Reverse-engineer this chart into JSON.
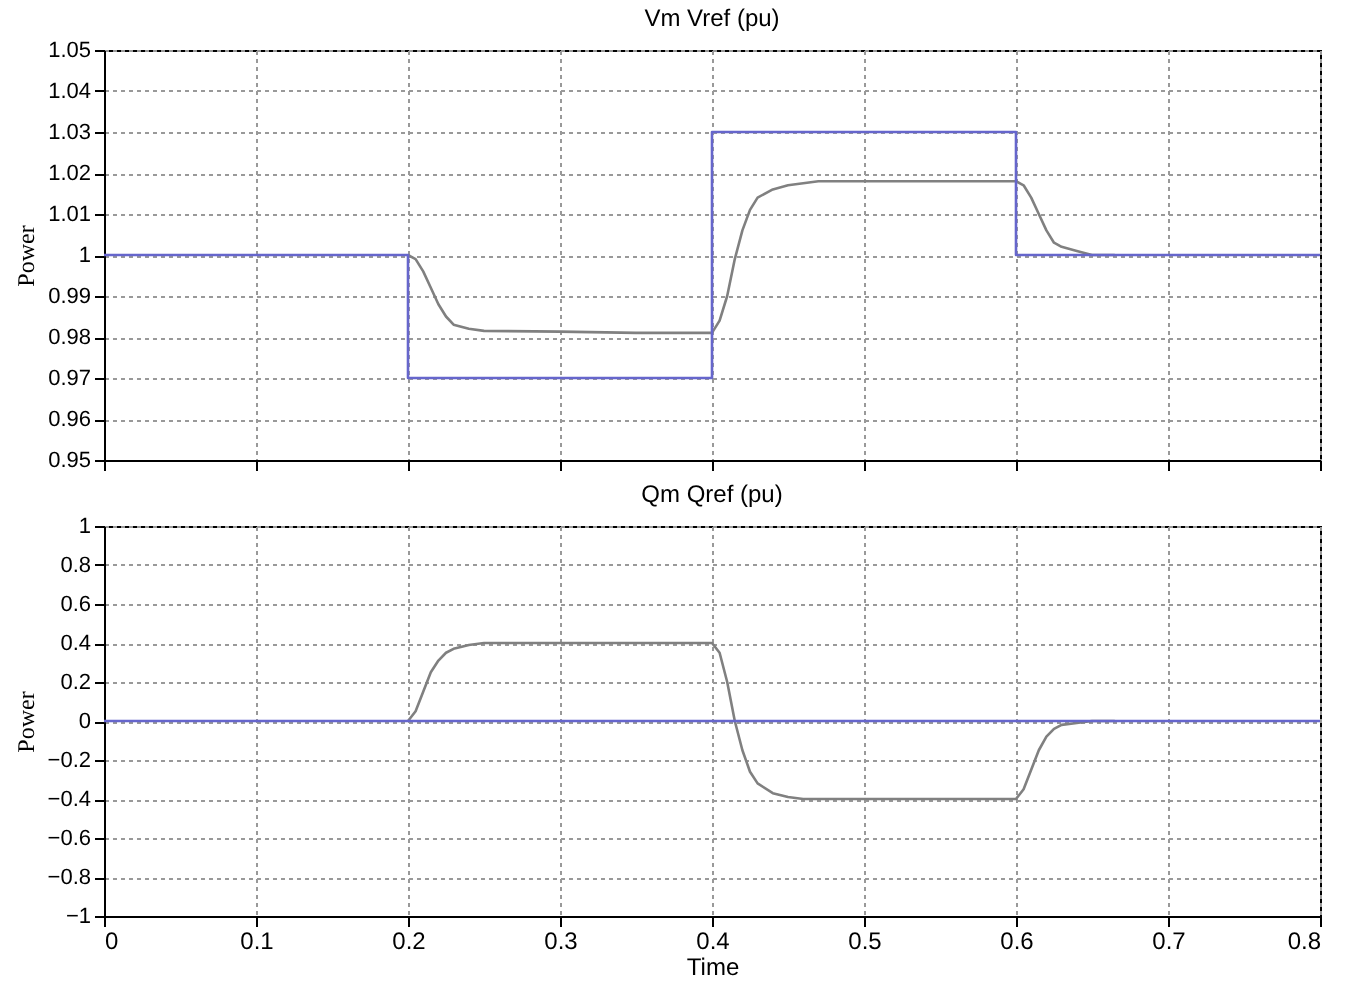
{
  "chart_data": [
    {
      "type": "line",
      "title": "Vm Vref (pu)",
      "ylabel": "Power",
      "xlim": [
        0,
        0.8
      ],
      "xticks": [
        0,
        0.1,
        0.2,
        0.3,
        0.4,
        0.5,
        0.6,
        0.7,
        0.8
      ],
      "ylim": [
        0.95,
        1.05
      ],
      "yticks": [
        0.95,
        0.96,
        0.97,
        0.98,
        0.99,
        1,
        1.01,
        1.02,
        1.03,
        1.04,
        1.05
      ],
      "grid": true,
      "tick_labels": "y",
      "line_style": "solid",
      "series": [
        {
          "color": "#808080",
          "x": [
            0.2,
            0.205,
            0.21,
            0.215,
            0.22,
            0.225,
            0.23,
            0.24,
            0.25,
            0.3,
            0.35,
            0.4,
            0.405,
            0.41,
            0.415,
            0.42,
            0.425,
            0.43,
            0.44,
            0.45,
            0.47,
            0.5,
            0.55,
            0.6,
            0.605,
            0.61,
            0.615,
            0.62,
            0.625,
            0.63,
            0.64,
            0.65,
            0.665
          ],
          "values": [
            1.0,
            0.999,
            0.996,
            0.992,
            0.988,
            0.985,
            0.983,
            0.982,
            0.9815,
            0.9813,
            0.981,
            0.981,
            0.984,
            0.99,
            0.999,
            1.006,
            1.011,
            1.014,
            1.016,
            1.017,
            1.018,
            1.018,
            1.018,
            1.018,
            1.017,
            1.014,
            1.01,
            1.006,
            1.003,
            1.002,
            1.001,
            1.0,
            1.0
          ]
        },
        {
          "color": "#6666cc",
          "x": [
            0,
            0.2,
            0.2,
            0.4,
            0.4,
            0.6,
            0.6,
            0.8
          ],
          "values": [
            1,
            1,
            0.97,
            0.97,
            1.03,
            1.03,
            1,
            1
          ]
        }
      ]
    },
    {
      "type": "line",
      "title": "Qm Qref (pu)",
      "xlabel": "Time",
      "ylabel": "Power",
      "xlim": [
        0,
        0.8
      ],
      "xticks": [
        0,
        0.1,
        0.2,
        0.3,
        0.4,
        0.5,
        0.6,
        0.7,
        0.8
      ],
      "ylim": [
        -1,
        1
      ],
      "yticks": [
        -1,
        -0.8,
        -0.6,
        -0.4,
        -0.2,
        0,
        0.2,
        0.4,
        0.6,
        0.8,
        1
      ],
      "grid": true,
      "line_style": "solid",
      "series": [
        {
          "color": "#808080",
          "x": [
            0.2,
            0.205,
            0.21,
            0.215,
            0.22,
            0.225,
            0.23,
            0.24,
            0.25,
            0.3,
            0.35,
            0.4,
            0.405,
            0.41,
            0.415,
            0.42,
            0.425,
            0.43,
            0.44,
            0.45,
            0.46,
            0.5,
            0.55,
            0.6,
            0.605,
            0.61,
            0.615,
            0.62,
            0.625,
            0.63,
            0.64,
            0.65,
            0.665
          ],
          "values": [
            0,
            0.05,
            0.15,
            0.25,
            0.31,
            0.35,
            0.37,
            0.39,
            0.4,
            0.4,
            0.4,
            0.4,
            0.35,
            0.2,
            0.0,
            -0.15,
            -0.26,
            -0.32,
            -0.37,
            -0.39,
            -0.4,
            -0.4,
            -0.4,
            -0.4,
            -0.35,
            -0.25,
            -0.15,
            -0.08,
            -0.04,
            -0.02,
            -0.01,
            0,
            0
          ]
        },
        {
          "color": "#6666cc",
          "x": [
            0,
            0.8
          ],
          "values": [
            0,
            0
          ]
        }
      ]
    }
  ]
}
